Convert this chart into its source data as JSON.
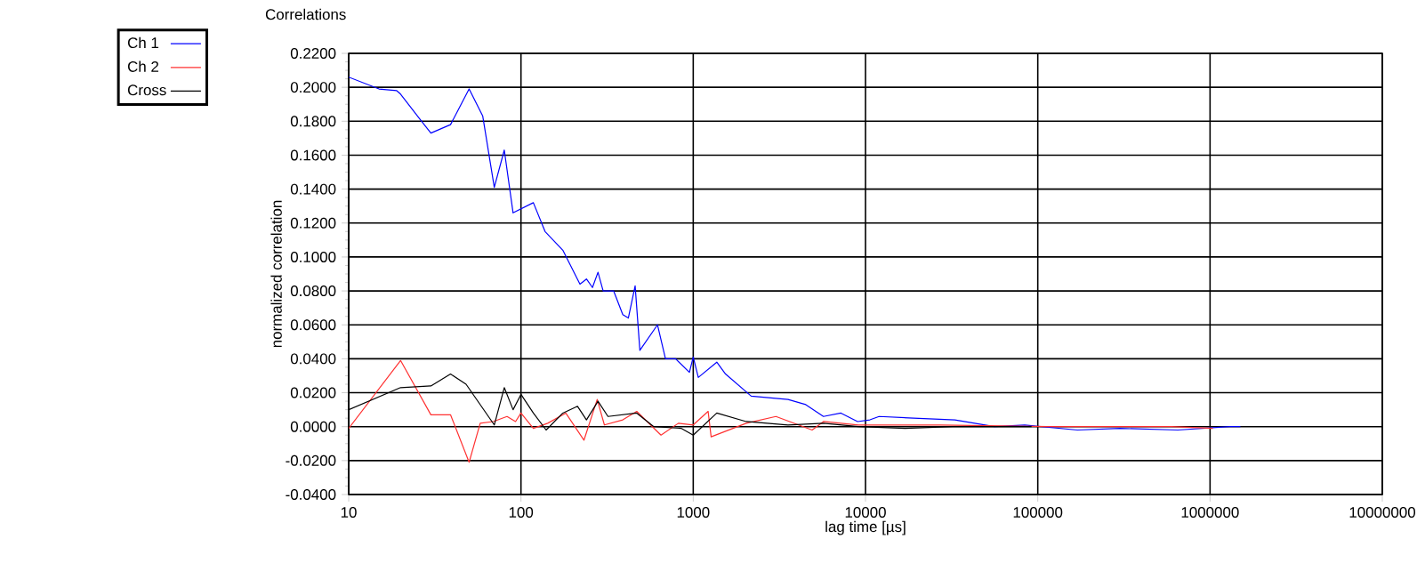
{
  "chart_data": {
    "type": "line",
    "title": "Correlations",
    "xlabel": "lag time [µs]",
    "ylabel": "normalized correlation",
    "log": "x",
    "grid": true,
    "legend": "left",
    "xlim": [
      10,
      10000000
    ],
    "xticks": [
      10,
      100,
      1000,
      10000,
      100000,
      1000000,
      10000000
    ],
    "ylim": [
      -0.04,
      0.22
    ],
    "yticks": [
      {
        "value": -0.04,
        "label": "-0.0400"
      },
      {
        "value": -0.02,
        "label": "-0.0200"
      },
      {
        "value": 0,
        "label": "0.0000"
      },
      {
        "value": 0.02,
        "label": "0.0200"
      },
      {
        "value": 0.04,
        "label": "0.0400"
      },
      {
        "value": 0.06,
        "label": "0.0600"
      },
      {
        "value": 0.08,
        "label": "0.0800"
      },
      {
        "value": 0.1,
        "label": "0.1000"
      },
      {
        "value": 0.12,
        "label": "0.1200"
      },
      {
        "value": 0.14,
        "label": "0.1400"
      },
      {
        "value": 0.16,
        "label": "0.1600"
      },
      {
        "value": 0.18,
        "label": "0.1800"
      },
      {
        "value": 0.2,
        "label": "0.2000"
      },
      {
        "value": 0.22,
        "label": "0.2200"
      }
    ],
    "series": [
      {
        "name": "Ch 1",
        "color": "#0000ff",
        "x": [
          10,
          15,
          19,
          20,
          26,
          30,
          39,
          50,
          60,
          70,
          80,
          90,
          118,
          138,
          175,
          220,
          240,
          260,
          280,
          300,
          345,
          390,
          420,
          460,
          490,
          620,
          690,
          790,
          950,
          1000,
          1070,
          1370,
          1540,
          2170,
          3550,
          4500,
          5700,
          7200,
          9000,
          10600,
          12000,
          19000,
          33000,
          56000,
          84000,
          170000,
          300000,
          650000,
          1300000,
          1500000
        ],
        "values": [
          0.206,
          0.199,
          0.198,
          0.196,
          0.181,
          0.173,
          0.178,
          0.199,
          0.183,
          0.141,
          0.163,
          0.126,
          0.132,
          0.115,
          0.104,
          0.084,
          0.087,
          0.082,
          0.091,
          0.08,
          0.08,
          0.066,
          0.064,
          0.083,
          0.045,
          0.06,
          0.04,
          0.04,
          0.032,
          0.041,
          0.029,
          0.038,
          0.031,
          0.018,
          0.016,
          0.013,
          0.006,
          0.008,
          0.003,
          0.004,
          0.006,
          0.005,
          0.004,
          0,
          0.001,
          -0.002,
          -0.001,
          -0.002,
          0,
          0
        ]
      },
      {
        "name": "Ch 2",
        "color": "#ff3030",
        "x": [
          10,
          20,
          30,
          39,
          50,
          58,
          69,
          83,
          93,
          100,
          118,
          143,
          182,
          232,
          277,
          305,
          390,
          470,
          650,
          820,
          1000,
          1220,
          1270,
          2030,
          3020,
          4900,
          5700,
          9100,
          27000,
          115000,
          600000,
          1040000
        ],
        "values": [
          -0.001,
          0.039,
          0.007,
          0.007,
          -0.021,
          0.002,
          0.003,
          0.006,
          0.003,
          0.008,
          -0.001,
          0.002,
          0.008,
          -0.008,
          0.016,
          0.001,
          0.004,
          0.009,
          -0.005,
          0.002,
          0.001,
          0.009,
          -0.006,
          0.002,
          0.006,
          -0.002,
          0.003,
          0.001,
          0.001,
          0,
          0,
          -0.001
        ]
      },
      {
        "name": "Cross",
        "color": "#000000",
        "x": [
          10,
          20,
          30,
          39,
          48,
          70,
          80,
          90,
          100,
          118,
          140,
          175,
          213,
          240,
          280,
          320,
          470,
          590,
          850,
          1000,
          1370,
          2030,
          3550,
          5700,
          9100,
          17000,
          32000,
          92000
        ],
        "values": [
          0.01,
          0.023,
          0.024,
          0.031,
          0.025,
          0.001,
          0.023,
          0.01,
          0.019,
          0.008,
          -0.002,
          0.008,
          0.012,
          0.004,
          0.015,
          0.006,
          0.008,
          0,
          -0.001,
          -0.005,
          0.008,
          0.003,
          0.001,
          0.002,
          0,
          -0.001,
          0,
          0
        ]
      }
    ]
  }
}
